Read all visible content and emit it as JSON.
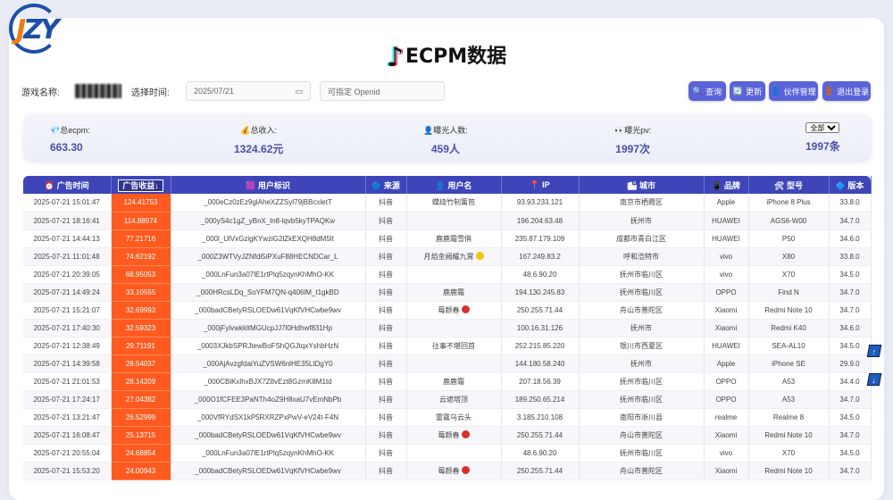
{
  "logo": "JZY",
  "title": "ECPM数据",
  "controls": {
    "game_label": "游戏名称:",
    "time_label": "选择时间:",
    "date_value": "2025/07/21",
    "openid_placeholder": "可指定 Openid"
  },
  "buttons": {
    "query": "查询",
    "refresh": "更新",
    "partner": "伙伴管理",
    "logout": "退出登录"
  },
  "stats": {
    "ecpm_label": "总ecpm:",
    "ecpm": "663.30",
    "income_label": "总收入:",
    "income": "1324.62元",
    "users_label": "曝光人数:",
    "users": "459人",
    "pv_label": "曝光pv:",
    "pv": "1997次",
    "filter": "全部",
    "count": "1997条"
  },
  "headers": [
    "广告时间",
    "广告收益↓",
    "用户标识",
    "来源",
    "用户名",
    "IP",
    "城市",
    "品牌",
    "型号",
    "版本"
  ],
  "colors": {
    "accent": "#3e45b8",
    "revenue": "#ff5a1f",
    "button": "#5a63d8"
  },
  "rows": [
    [
      "2025-07-21 15:01:47",
      "124.41753",
      "_000eCz0zEz9glAheXZZSyl79jBBcxletT",
      "抖音",
      "蝶绕竹制篱笆",
      "93.93.233.121",
      "南京市栖霞区",
      "Apple",
      "iPhone 8 Plus",
      "33.8.0",
      ""
    ],
    [
      "2025-07-21 18:16:41",
      "114.88974",
      "_000yS4c1gZ_yBnX_ln8-lqvb5kyTPAQKw",
      "抖音",
      "",
      "196.204.63.48",
      "抚州市",
      "HUAWEI",
      "AGS6-W00",
      "34.7.0",
      ""
    ],
    [
      "2025-07-21 14:44:13",
      "77.21716",
      "_000l_UlVxGzigKYwziG2lZkEXQH8dM5lt",
      "抖音",
      "鹿鹿霜雪俏",
      "235.87.179.109",
      "成都市青白江区",
      "HUAWEI",
      "P50",
      "34.6.0",
      ""
    ],
    [
      "2025-07-21 11:01:48",
      "74.62192",
      "_000Z3WTVyJZNfdi5iPXuF88HECNDCar_L",
      "抖音",
      "月焰金阙耀九霄",
      "167.249.83.2",
      "呼和浩特市",
      "vivo",
      "X80",
      "33.8.0",
      "coin"
    ],
    [
      "2025-07-21 20:39:05",
      "68.95053",
      "_000LnFun3a07lE1rtPlq5zqynKhMhO-KK",
      "抖音",
      "",
      "48.6.90.20",
      "抚州市临川区",
      "vivo",
      "X70",
      "34.5.0",
      ""
    ],
    [
      "2025-07-21 14:49:24",
      "33.10555",
      "_000HRcsLDq_SoYFM7QN-q406lM_t1gkBD",
      "抖音",
      "鹿鹿霜",
      "194.130.245.83",
      "抚州市临川区",
      "OPPO",
      "Find N",
      "34.7.0",
      ""
    ],
    [
      "2025-07-21 15:21:07",
      "32.69993",
      "_000badCBetyRSLOEDw61VqKfVHCwbe9wv",
      "抖音",
      "莓颜春",
      "250.255.71.44",
      "舟山市普陀区",
      "Xiaomi",
      "Redmi Note 10",
      "34.7.0",
      "berry"
    ],
    [
      "2025-07-21 17:40:30",
      "32.59323",
      "_000jFylvwkkltMGUcpJJ7l0Hdhwf831Hp",
      "抖音",
      "",
      "100.16.31.126",
      "抚州市",
      "Xiaomi",
      "Redmi K40",
      "34.6.0",
      ""
    ],
    [
      "2025-07-21 12:38:49",
      "29.71191",
      "_0003XJkbSPRJtewBoFShQGJtqxYshbHzN",
      "抖音",
      "往事不堪回首",
      "252.215.85.220",
      "银川市西夏区",
      "HUAWEI",
      "SEA-AL10",
      "34.5.0",
      ""
    ],
    [
      "2025-07-21 14:39:58",
      "28.54037",
      "_000AjAvzgfdaiYuZVSW6nlHE35LtDgY0",
      "抖音",
      "",
      "144.180.58.240",
      "抚州市",
      "Apple",
      "iPhone SE",
      "29.9.0",
      ""
    ],
    [
      "2025-07-21 21:01:53",
      "28.14209",
      "_000CBiKxlhxBJX7Z8vEzt8GzmK8M1td",
      "抖音",
      "鹿鹿霜",
      "207.18.56.39",
      "抚州市临川区",
      "OPPO",
      "A53",
      "34.4.0",
      ""
    ],
    [
      "2025-07-21 17:24:17",
      "27.04382",
      "_000O1fCFEE3PaNTh4oZ9H8xaU7vEmNbPb",
      "抖音",
      "云遮塔顶",
      "189.250.65.214",
      "抚州市临川区",
      "OPPO",
      "A53",
      "34.7.0",
      ""
    ],
    [
      "2025-07-21 13:21:47",
      "26.52999",
      "_000VfRYdSX1kP5RXRZPxPwV-eV24t-F4N",
      "抖音",
      "雷霆乌云头",
      "3.185.210.108",
      "南阳市淅川县",
      "realme",
      "Realme 8",
      "34.5.0",
      ""
    ],
    [
      "2025-07-21 16:08:47",
      "25.13715",
      "_000badCBetyRSLOEDw61VqKfVHCwbe9wv",
      "抖音",
      "莓颜春",
      "250.255.71.44",
      "舟山市普陀区",
      "Xiaomi",
      "Redmi Note 10",
      "34.7.0",
      "berry"
    ],
    [
      "2025-07-21 20:55:04",
      "24.68854",
      "_000LnFun3a07lE1rtPlq5zqynKhMhO-KK",
      "抖音",
      "",
      "48.6.90.20",
      "抚州市临川区",
      "vivo",
      "X70",
      "34.5.0",
      ""
    ],
    [
      "2025-07-21 15:53:20",
      "24.00943",
      "_000badCBetyRSLOEDw61VqKfVHCwbe9wv",
      "抖音",
      "莓颜春",
      "250.255.71.44",
      "舟山市普陀区",
      "Xiaomi",
      "Redmi Note 10",
      "34.7.0",
      "berry"
    ]
  ]
}
